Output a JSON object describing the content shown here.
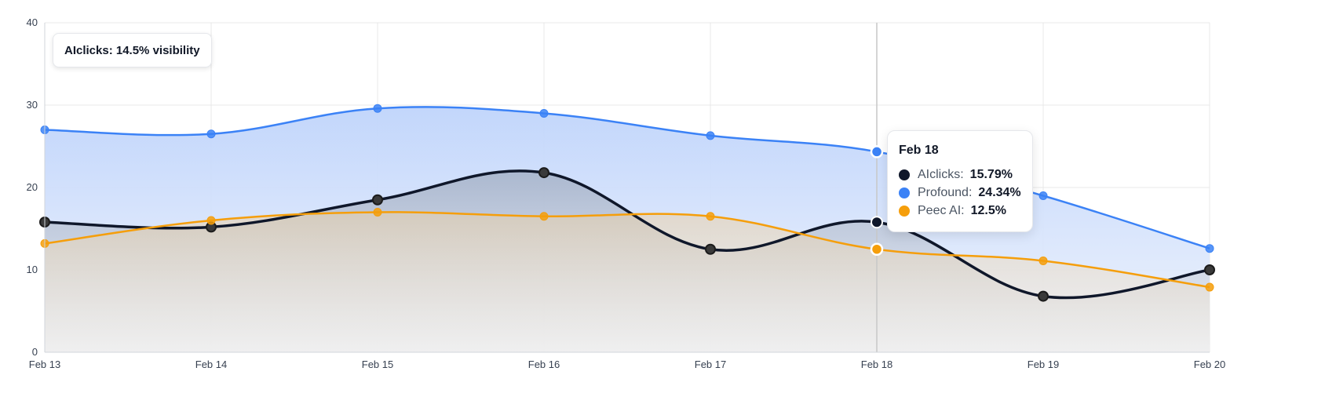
{
  "chart_data": {
    "type": "area",
    "categories": [
      "Feb 13",
      "Feb 14",
      "Feb 15",
      "Feb 16",
      "Feb 17",
      "Feb 18",
      "Feb 19",
      "Feb 20"
    ],
    "ylim": [
      0,
      40
    ],
    "yticks": [
      0,
      10,
      20,
      30,
      40
    ],
    "grid": true,
    "series": [
      {
        "name": "Profound",
        "color": "#3b82f6",
        "values": [
          27.0,
          26.5,
          29.6,
          29.0,
          26.3,
          24.34,
          19.0,
          12.6
        ]
      },
      {
        "name": "AIclicks",
        "color": "#0f172a",
        "values": [
          15.8,
          15.2,
          18.5,
          21.8,
          12.5,
          15.79,
          6.8,
          10.0
        ]
      },
      {
        "name": "Peec AI",
        "color": "#f59e0b",
        "values": [
          13.2,
          16.0,
          17.0,
          16.5,
          16.5,
          12.5,
          11.1,
          7.9
        ]
      }
    ],
    "highlight_index": 5
  },
  "badge": {
    "text": "AIclicks: 14.5% visibility"
  },
  "tooltip": {
    "title": "Feb 18",
    "rows": [
      {
        "name": "AIclicks:",
        "value": "15.79%",
        "color": "#0f172a"
      },
      {
        "name": "Profound:",
        "value": "24.34%",
        "color": "#3b82f6"
      },
      {
        "name": "Peec AI:",
        "value": "12.5%",
        "color": "#f59e0b"
      }
    ]
  }
}
